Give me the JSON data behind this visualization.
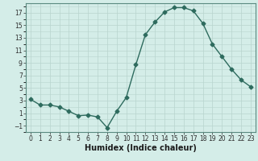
{
  "x": [
    0,
    1,
    2,
    3,
    4,
    5,
    6,
    7,
    8,
    9,
    10,
    11,
    12,
    13,
    14,
    15,
    16,
    17,
    18,
    19,
    20,
    21,
    22,
    23
  ],
  "y": [
    3.2,
    2.3,
    2.3,
    2.0,
    1.3,
    0.6,
    0.7,
    0.4,
    -1.3,
    1.3,
    3.5,
    8.7,
    13.5,
    15.5,
    17.1,
    17.8,
    17.8,
    17.3,
    15.3,
    12.0,
    10.0,
    8.0,
    6.3,
    5.2
  ],
  "line_color": "#2e6b5e",
  "marker": "D",
  "markersize": 2.5,
  "linewidth": 1.0,
  "xlabel": "Humidex (Indice chaleur)",
  "xlabel_fontsize": 7,
  "bg_color": "#d4ede8",
  "grid_color": "#b8d4ce",
  "ylim": [
    -2,
    18.5
  ],
  "xlim": [
    -0.5,
    23.5
  ],
  "yticks": [
    -1,
    1,
    3,
    5,
    7,
    9,
    11,
    13,
    15,
    17
  ],
  "xticks": [
    0,
    1,
    2,
    3,
    4,
    5,
    6,
    7,
    8,
    9,
    10,
    11,
    12,
    13,
    14,
    15,
    16,
    17,
    18,
    19,
    20,
    21,
    22,
    23
  ],
  "tick_fontsize": 5.5,
  "spine_color": "#5a8a80"
}
